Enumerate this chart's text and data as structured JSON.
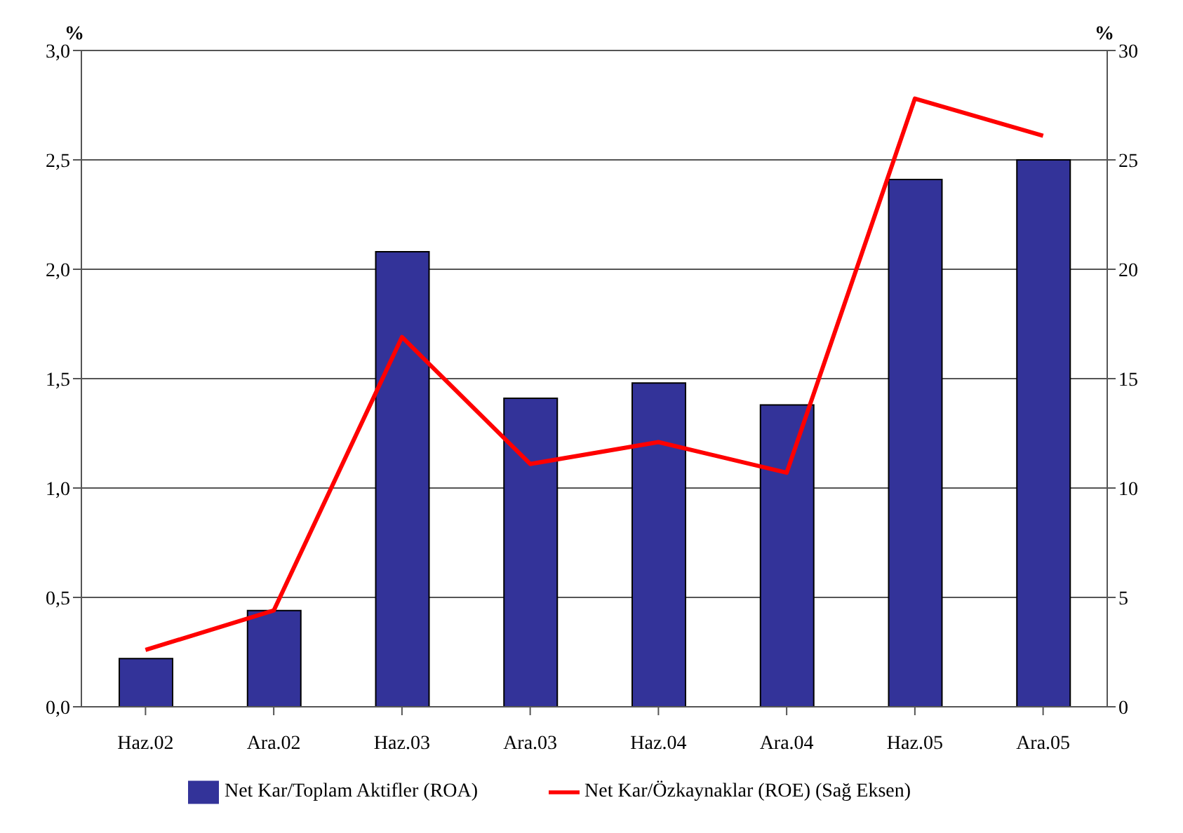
{
  "chart_data": {
    "type": "bar",
    "categories": [
      "Haz.02",
      "Ara.02",
      "Haz.03",
      "Ara.03",
      "Haz.04",
      "Ara.04",
      "Haz.05",
      "Ara.05"
    ],
    "series": [
      {
        "name": "Net Kar/Toplam Aktifler (ROA)",
        "color": "#333399",
        "values": [
          0.22,
          0.44,
          2.08,
          1.41,
          1.48,
          1.38,
          2.41,
          2.5
        ]
      },
      {
        "name": "Net Kar/Özkaynaklar (ROE) (Sağ Eksen)",
        "type": "line",
        "axis": "y2",
        "color": "#ff0000",
        "values": [
          2.6,
          4.4,
          16.9,
          11.1,
          12.1,
          10.7,
          27.8,
          26.1
        ]
      }
    ],
    "ylabel": "%",
    "y2label": "%",
    "ylim": [
      0,
      3
    ],
    "yticks": [
      {
        "value": 0,
        "label": "0,0"
      },
      {
        "value": 0.5,
        "label": "0,5"
      },
      {
        "value": 1,
        "label": "1,0"
      },
      {
        "value": 1.5,
        "label": "1,5"
      },
      {
        "value": 2,
        "label": "2,0"
      },
      {
        "value": 2.5,
        "label": "2,5"
      },
      {
        "value": 3,
        "label": "3,0"
      }
    ],
    "y2lim": [
      0,
      30
    ],
    "y2ticks": [
      0,
      5,
      10,
      15,
      20,
      25,
      30
    ],
    "grid": "y",
    "legend": "bottom",
    "marker": "none",
    "line_style": "solid"
  }
}
